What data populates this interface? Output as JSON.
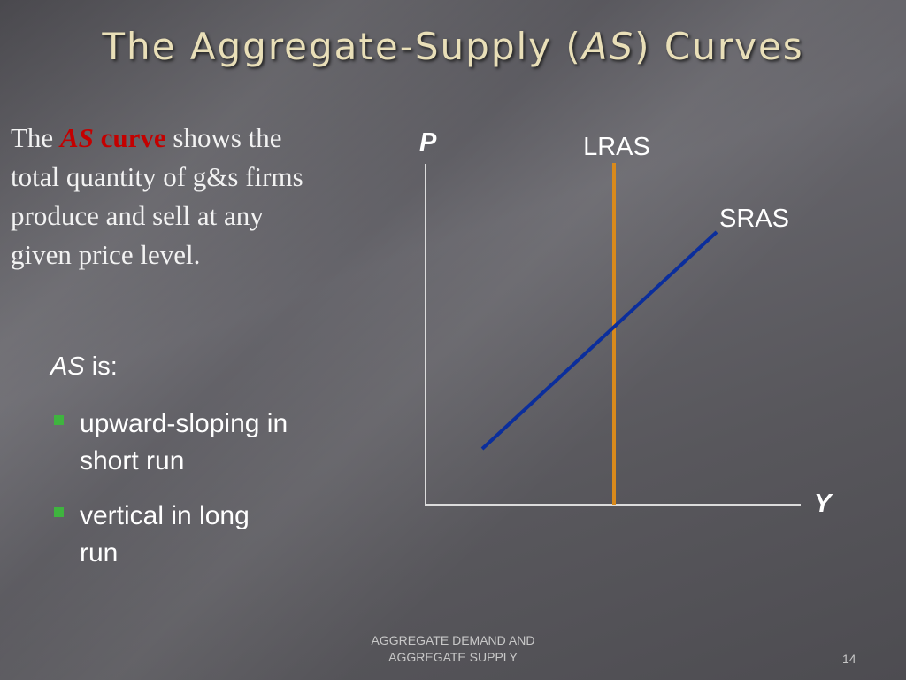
{
  "title": {
    "before": "The Aggregate-Supply (",
    "italic": "AS",
    "after": ") Curves"
  },
  "intro": {
    "lead": "The",
    "term_italic": "AS",
    "term_bold": "curve",
    "rest": "shows the total quantity of g&s firms produce and sell at any given price level."
  },
  "list": {
    "heading_italic": "AS",
    "heading_rest": "is:",
    "bullets": [
      "upward-sloping in short run",
      "vertical in long run"
    ]
  },
  "diagram": {
    "y_axis": "P",
    "x_axis": "Y",
    "vertical_curve": "LRAS",
    "sloped_curve": "SRAS"
  },
  "footer": {
    "text": "AGGREGATE DEMAND AND AGGREGATE SUPPLY",
    "page": "14"
  }
}
